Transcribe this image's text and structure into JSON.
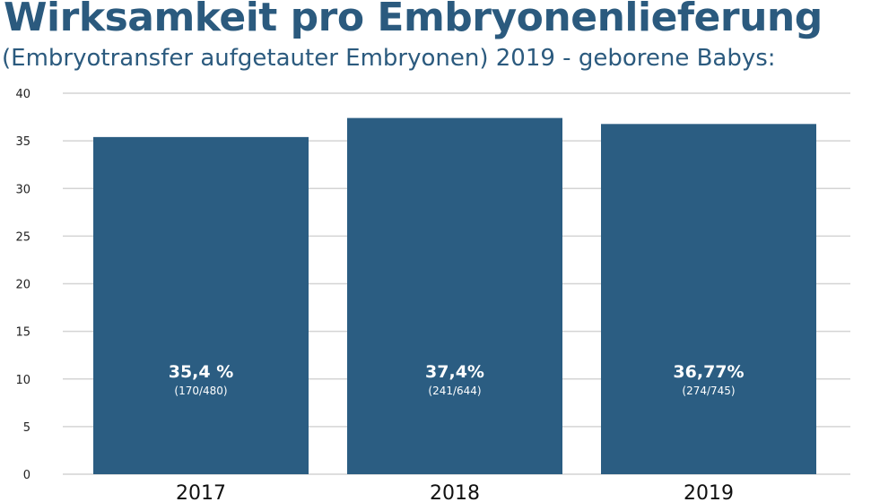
{
  "chart_data": {
    "type": "bar",
    "title": "Wirksamkeit pro Embryonenlieferung",
    "subtitle": "(Embryotransfer aufgetauter Embryonen) 2019 - geborene Babys:",
    "categories": [
      "2017",
      "2018",
      "2019"
    ],
    "values": [
      35.4,
      37.4,
      36.77
    ],
    "labels": [
      "35,4 %",
      "37,4%",
      "36,77%"
    ],
    "sublabels": [
      "(170/480)",
      "(241/644)",
      "(274/745)"
    ],
    "yticks": [
      "0",
      "5",
      "10",
      "15",
      "20",
      "25",
      "30",
      "35",
      "40"
    ],
    "ylim": [
      0,
      40
    ],
    "xlabel": "",
    "ylabel": "",
    "grid": true,
    "colors": {
      "bar": "#2b5d82",
      "grid": "#d4d4d4",
      "title": "#2b5a7e"
    }
  }
}
